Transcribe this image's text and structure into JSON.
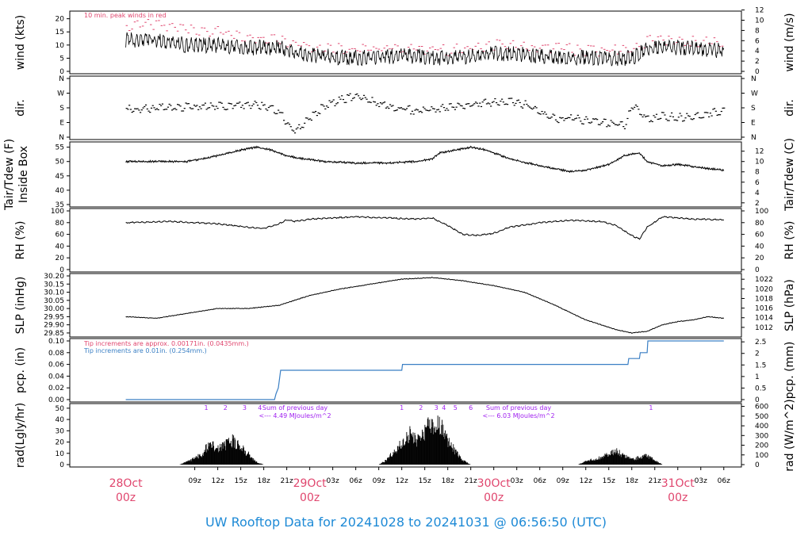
{
  "footer_title": "UW Rooftop Data for 20241028  to  20241031 @ 06:56:50  (UTC)",
  "colors": {
    "red": "#e0466e",
    "blue": "#3a7fc4",
    "purple": "#a020f0",
    "title_blue": "#1e8ad6",
    "black": "#000000"
  },
  "chart_data": [
    {
      "type": "line",
      "panel": "wind",
      "ylabel_left": "wind (kts)",
      "ylabel_right": "wind (m/s)",
      "ylim": [
        0,
        22
      ],
      "yticks_left": [
        "0",
        "5",
        "10",
        "15",
        "20"
      ],
      "yticks_right": [
        "0",
        "2",
        "4",
        "6",
        "8",
        "10",
        "12"
      ],
      "annotation": "10 min. peak winds in red",
      "series": [
        {
          "name": "10 min. peak winds",
          "color": "#e0466e",
          "x_hours": [
            0,
            4,
            8,
            12,
            16,
            20,
            24,
            30,
            36,
            42,
            48,
            54,
            60,
            66,
            68,
            72,
            78
          ],
          "values": [
            17,
            18,
            16,
            15,
            13,
            12,
            9,
            8,
            9,
            8,
            10,
            9,
            8,
            8,
            12,
            12,
            11
          ]
        },
        {
          "name": "wind speed",
          "color": "#000000",
          "x_hours": [
            0,
            4,
            8,
            12,
            16,
            20,
            24,
            30,
            36,
            42,
            48,
            54,
            60,
            66,
            68,
            72,
            78
          ],
          "values": [
            12,
            12,
            10,
            10,
            9,
            9,
            6,
            5,
            6,
            5,
            7,
            6,
            5,
            5,
            9,
            9,
            8
          ]
        }
      ]
    },
    {
      "type": "scatter",
      "panel": "dir",
      "ylabel_left": "dir.",
      "ylabel_right": "dir.",
      "yticks": [
        "N",
        "E",
        "S",
        "W",
        "N"
      ],
      "ylim_deg": [
        0,
        360
      ],
      "x_hours": [
        0,
        4,
        8,
        12,
        16,
        18,
        20,
        21,
        22,
        24,
        26,
        28,
        30,
        34,
        38,
        42,
        46,
        50,
        52,
        54,
        56,
        58,
        60,
        62,
        64,
        65,
        66,
        68,
        70,
        72,
        74,
        76,
        78
      ],
      "values": [
        170,
        180,
        185,
        190,
        200,
        195,
        150,
        80,
        30,
        120,
        200,
        230,
        250,
        190,
        160,
        180,
        210,
        215,
        200,
        150,
        110,
        120,
        100,
        90,
        80,
        70,
        200,
        110,
        130,
        120,
        130,
        150,
        160
      ]
    },
    {
      "type": "line",
      "panel": "temp",
      "ylabel_left": [
        "Tair/Tdew (F)",
        "Inside Box"
      ],
      "ylabel_right": "Tair/Tdew (C)",
      "ylim": [
        35,
        56
      ],
      "yticks_left": [
        "35",
        "40",
        "45",
        "50",
        "55"
      ],
      "yticks_right": [
        "2",
        "4",
        "6",
        "8",
        "10",
        "12"
      ],
      "x_hours": [
        0,
        4,
        8,
        12,
        15,
        17,
        19,
        21,
        23,
        26,
        30,
        34,
        38,
        40,
        41,
        43,
        45,
        47,
        50,
        54,
        58,
        60,
        63,
        65,
        67,
        68,
        70,
        72,
        76,
        78
      ],
      "values": [
        50,
        50,
        50,
        52,
        54,
        55,
        54,
        52,
        51,
        50,
        49.5,
        49.5,
        50,
        51,
        53,
        54,
        55,
        54,
        51,
        48.5,
        46.5,
        47,
        49,
        52,
        53,
        50,
        48.5,
        49,
        47.5,
        47
      ]
    },
    {
      "type": "line",
      "panel": "rh",
      "ylabel_left": "RH (%)",
      "ylabel_right": "RH (%)",
      "ylim": [
        0,
        100
      ],
      "yticks": [
        "0",
        "20",
        "40",
        "60",
        "80",
        "100"
      ],
      "x_hours": [
        0,
        6,
        12,
        16,
        18,
        20,
        21,
        22,
        24,
        30,
        34,
        38,
        40,
        42,
        44,
        46,
        48,
        50,
        54,
        58,
        62,
        64,
        66,
        67,
        68,
        70,
        74,
        78
      ],
      "values": [
        80,
        82,
        78,
        72,
        70,
        78,
        85,
        82,
        86,
        90,
        88,
        86,
        88,
        75,
        60,
        58,
        62,
        72,
        80,
        84,
        82,
        75,
        58,
        52,
        72,
        90,
        86,
        85
      ]
    },
    {
      "type": "line",
      "panel": "slp",
      "ylabel_left": "SLP (inHg)",
      "ylabel_right": "SLP (hPa)",
      "ylim": [
        29.84,
        30.2
      ],
      "yticks_left": [
        "29.85",
        "29.90",
        "29.95",
        "30.00",
        "30.05",
        "30.10",
        "30.15",
        "30.20"
      ],
      "yticks_right": [
        "1012",
        "1014",
        "1016",
        "1018",
        "1020",
        "1022"
      ],
      "x_hours": [
        0,
        4,
        8,
        12,
        16,
        20,
        24,
        28,
        32,
        36,
        40,
        44,
        48,
        52,
        56,
        60,
        64,
        66,
        68,
        70,
        72,
        74,
        76,
        78
      ],
      "values": [
        29.95,
        29.94,
        29.97,
        30.0,
        30.0,
        30.02,
        30.08,
        30.12,
        30.15,
        30.18,
        30.19,
        30.17,
        30.14,
        30.1,
        30.02,
        29.93,
        29.87,
        29.85,
        29.86,
        29.9,
        29.92,
        29.93,
        29.95,
        29.94
      ]
    },
    {
      "type": "line",
      "panel": "pcp",
      "ylabel_left": "pcp. (in)",
      "ylabel_right": "pcp. (mm)",
      "ylim": [
        0,
        0.1
      ],
      "yticks_left": [
        "0.00",
        "0.02",
        "0.04",
        "0.06",
        "0.08",
        "0.10"
      ],
      "yticks_right": [
        "0",
        "0.5",
        "1",
        "1.5",
        "2",
        "2.5"
      ],
      "annotations": [
        {
          "text": "Tip increments are approx. 0.00171in. (0.0435mm.)",
          "color": "#e0466e"
        },
        {
          "text": "Tip increments are 0.01in. (0.254mm.)",
          "color": "#3a7fc4"
        }
      ],
      "x_hours": [
        0,
        19.4,
        19.6,
        19.9,
        20.2,
        36,
        36.1,
        65.5,
        65.6,
        67,
        67.1,
        68,
        68.1,
        78
      ],
      "values": [
        0,
        0,
        0.01,
        0.02,
        0.05,
        0.05,
        0.06,
        0.06,
        0.07,
        0.07,
        0.08,
        0.08,
        0.1,
        0.1
      ]
    },
    {
      "type": "area",
      "panel": "rad",
      "ylabel_left": "rad(Lgly/hr)",
      "ylabel_right": "rad (W/m^2)",
      "ylim": [
        0,
        52
      ],
      "yticks_left": [
        "0",
        "10",
        "20",
        "30",
        "40",
        "50"
      ],
      "yticks_right": [
        "0",
        "100",
        "200",
        "300",
        "400",
        "500",
        "600"
      ],
      "annotations": [
        {
          "text": "Sum of previous day",
          "color": "#a020f0"
        },
        {
          "text": "<--- 4.49 MJoules/m^2",
          "color": "#a020f0"
        },
        {
          "text": "Sum of previous day",
          "color": "#a020f0"
        },
        {
          "text": "<--- 6.03 MJoules/m^2",
          "color": "#a020f0"
        }
      ],
      "peak_labels": [
        "1",
        "2",
        "3",
        "4",
        "1",
        "2",
        "3",
        "4",
        "5",
        "6",
        "1"
      ],
      "x_hours": [
        7,
        8.5,
        10,
        11,
        12,
        13,
        14,
        15,
        16,
        17,
        18,
        19,
        33,
        34,
        35,
        36,
        37,
        38,
        39,
        40,
        41,
        42,
        43,
        44,
        45,
        59,
        60,
        61,
        62,
        63,
        64,
        65,
        66,
        67,
        68,
        69,
        70
      ],
      "values": [
        0,
        5,
        12,
        25,
        18,
        22,
        28,
        20,
        12,
        3,
        0,
        0,
        0,
        5,
        15,
        25,
        35,
        28,
        38,
        48,
        45,
        28,
        15,
        5,
        0,
        0,
        4,
        6,
        8,
        12,
        15,
        10,
        6,
        8,
        10,
        5,
        0
      ]
    }
  ],
  "x_axis": {
    "tick_labels": [
      "09z",
      "12z",
      "15z",
      "18z",
      "21z",
      "00z",
      "03z",
      "06z",
      "09z",
      "12z",
      "15z",
      "18z",
      "21z",
      "00z",
      "03z",
      "06z",
      "09z",
      "12z",
      "15z",
      "18z",
      "21z",
      "00z",
      "03z",
      "06z"
    ],
    "day_labels": [
      {
        "date": "28Oct",
        "time": "00z"
      },
      {
        "date": "29Oct",
        "time": "00z"
      },
      {
        "date": "30Oct",
        "time": "00z"
      },
      {
        "date": "31Oct",
        "time": "00z"
      }
    ]
  }
}
